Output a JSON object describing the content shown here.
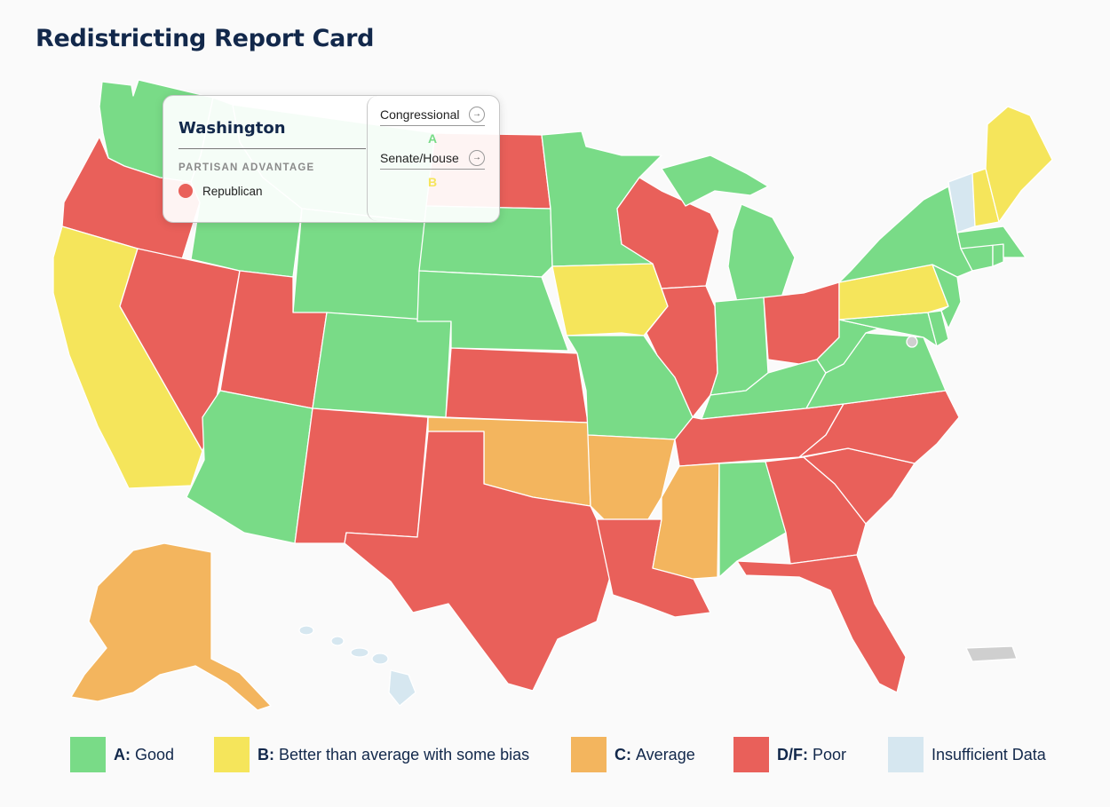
{
  "title": "Redistricting Report Card",
  "colors": {
    "A": "#79db87",
    "B": "#f5e55b",
    "C": "#f3b55e",
    "DF": "#e9605a",
    "insufficient": "#d6e7f0",
    "territory": "#cfcfcf"
  },
  "tooltip": {
    "state": "Washington",
    "section_label": "PARTISAN ADVANTAGE",
    "party": "Republican",
    "congressional_label": "Congressional",
    "congressional_grade": "A",
    "senate_house_label": "Senate/House",
    "senate_house_grade": "B"
  },
  "legend": [
    {
      "grade": "A:",
      "text": "Good",
      "color": "#79db87"
    },
    {
      "grade": "B:",
      "text": "Better than average with some bias",
      "color": "#f5e55b"
    },
    {
      "grade": "C:",
      "text": "Average",
      "color": "#f3b55e"
    },
    {
      "grade": "D/F:",
      "text": "Poor",
      "color": "#e9605a"
    },
    {
      "grade": "",
      "text": "Insufficient Data",
      "color": "#d6e7f0"
    }
  ],
  "states": [
    {
      "name": "Washington",
      "grade": "A"
    },
    {
      "name": "Oregon",
      "grade": "DF"
    },
    {
      "name": "California",
      "grade": "B"
    },
    {
      "name": "Nevada",
      "grade": "DF"
    },
    {
      "name": "Idaho",
      "grade": "A"
    },
    {
      "name": "Montana",
      "grade": "A"
    },
    {
      "name": "Wyoming",
      "grade": "A"
    },
    {
      "name": "Utah",
      "grade": "DF"
    },
    {
      "name": "Arizona",
      "grade": "A"
    },
    {
      "name": "Colorado",
      "grade": "A"
    },
    {
      "name": "New Mexico",
      "grade": "DF"
    },
    {
      "name": "North Dakota",
      "grade": "DF"
    },
    {
      "name": "South Dakota",
      "grade": "A"
    },
    {
      "name": "Nebraska",
      "grade": "A"
    },
    {
      "name": "Kansas",
      "grade": "DF"
    },
    {
      "name": "Oklahoma",
      "grade": "C"
    },
    {
      "name": "Texas",
      "grade": "DF"
    },
    {
      "name": "Minnesota",
      "grade": "A"
    },
    {
      "name": "Iowa",
      "grade": "B"
    },
    {
      "name": "Missouri",
      "grade": "A"
    },
    {
      "name": "Arkansas",
      "grade": "C"
    },
    {
      "name": "Louisiana",
      "grade": "DF"
    },
    {
      "name": "Wisconsin",
      "grade": "DF"
    },
    {
      "name": "Illinois",
      "grade": "DF"
    },
    {
      "name": "Michigan",
      "grade": "A"
    },
    {
      "name": "Indiana",
      "grade": "A"
    },
    {
      "name": "Ohio",
      "grade": "DF"
    },
    {
      "name": "Kentucky",
      "grade": "A"
    },
    {
      "name": "Tennessee",
      "grade": "DF"
    },
    {
      "name": "Mississippi",
      "grade": "C"
    },
    {
      "name": "Alabama",
      "grade": "A"
    },
    {
      "name": "Georgia",
      "grade": "DF"
    },
    {
      "name": "Florida",
      "grade": "DF"
    },
    {
      "name": "South Carolina",
      "grade": "DF"
    },
    {
      "name": "North Carolina",
      "grade": "DF"
    },
    {
      "name": "Virginia",
      "grade": "A"
    },
    {
      "name": "West Virginia",
      "grade": "A"
    },
    {
      "name": "Maryland",
      "grade": "A"
    },
    {
      "name": "Delaware",
      "grade": "A"
    },
    {
      "name": "Pennsylvania",
      "grade": "B"
    },
    {
      "name": "New Jersey",
      "grade": "A"
    },
    {
      "name": "New York",
      "grade": "A"
    },
    {
      "name": "Connecticut",
      "grade": "A"
    },
    {
      "name": "Rhode Island",
      "grade": "A"
    },
    {
      "name": "Massachusetts",
      "grade": "A"
    },
    {
      "name": "Vermont",
      "grade": "insufficient"
    },
    {
      "name": "New Hampshire",
      "grade": "B"
    },
    {
      "name": "Maine",
      "grade": "B"
    },
    {
      "name": "Alaska",
      "grade": "C"
    },
    {
      "name": "Hawaii",
      "grade": "insufficient"
    },
    {
      "name": "District of Columbia",
      "grade": "territory"
    },
    {
      "name": "Puerto Rico",
      "grade": "territory"
    }
  ]
}
